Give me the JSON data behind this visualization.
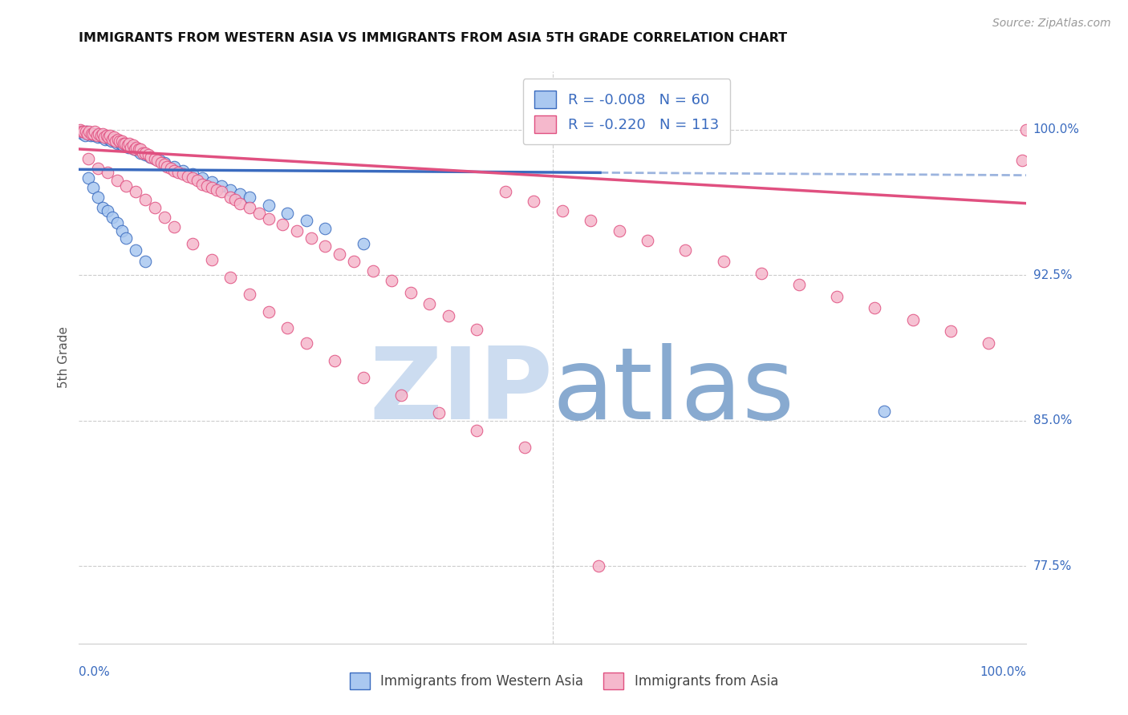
{
  "title": "IMMIGRANTS FROM WESTERN ASIA VS IMMIGRANTS FROM ASIA 5TH GRADE CORRELATION CHART",
  "source": "Source: ZipAtlas.com",
  "ylabel": "5th Grade",
  "y_ticks": [
    0.775,
    0.85,
    0.925,
    1.0
  ],
  "y_tick_labels": [
    "77.5%",
    "85.0%",
    "92.5%",
    "100.0%"
  ],
  "x_range": [
    0.0,
    1.0
  ],
  "y_range": [
    0.735,
    1.03
  ],
  "legend_r_blue": "-0.008",
  "legend_n_blue": "60",
  "legend_r_pink": "-0.220",
  "legend_n_pink": "113",
  "blue_color": "#aac8f0",
  "pink_color": "#f5b8cc",
  "blue_line_color": "#3a6bbf",
  "pink_line_color": "#e05080",
  "watermark_zip_color": "#ccdcf0",
  "watermark_atlas_color": "#88aad0",
  "blue_line_solid_end": 0.55,
  "blue_trend_intercept": 0.9795,
  "blue_trend_slope": -0.003,
  "pink_trend_intercept": 0.99,
  "pink_trend_slope": -0.028,
  "blue_scatter_x": [
    0.002,
    0.004,
    0.006,
    0.008,
    0.01,
    0.012,
    0.014,
    0.016,
    0.018,
    0.02,
    0.022,
    0.024,
    0.026,
    0.028,
    0.03,
    0.032,
    0.034,
    0.036,
    0.038,
    0.04,
    0.042,
    0.044,
    0.046,
    0.05,
    0.052,
    0.055,
    0.058,
    0.062,
    0.065,
    0.07,
    0.075,
    0.08,
    0.085,
    0.09,
    0.1,
    0.11,
    0.12,
    0.13,
    0.14,
    0.15,
    0.16,
    0.17,
    0.18,
    0.2,
    0.22,
    0.24,
    0.26,
    0.3,
    0.01,
    0.015,
    0.02,
    0.025,
    0.03,
    0.035,
    0.04,
    0.045,
    0.05,
    0.06,
    0.07,
    0.85
  ],
  "blue_scatter_y": [
    0.999,
    0.998,
    0.997,
    0.999,
    0.998,
    0.997,
    0.998,
    0.997,
    0.998,
    0.996,
    0.997,
    0.996,
    0.997,
    0.995,
    0.996,
    0.995,
    0.994,
    0.995,
    0.994,
    0.993,
    0.994,
    0.993,
    0.992,
    0.992,
    0.991,
    0.991,
    0.99,
    0.989,
    0.988,
    0.987,
    0.986,
    0.985,
    0.984,
    0.983,
    0.981,
    0.979,
    0.977,
    0.975,
    0.973,
    0.971,
    0.969,
    0.967,
    0.965,
    0.961,
    0.957,
    0.953,
    0.949,
    0.941,
    0.975,
    0.97,
    0.965,
    0.96,
    0.958,
    0.955,
    0.952,
    0.948,
    0.944,
    0.938,
    0.932,
    0.855
  ],
  "pink_scatter_x": [
    0.001,
    0.003,
    0.005,
    0.007,
    0.009,
    0.011,
    0.013,
    0.015,
    0.017,
    0.019,
    0.021,
    0.023,
    0.025,
    0.027,
    0.029,
    0.031,
    0.033,
    0.035,
    0.037,
    0.039,
    0.041,
    0.043,
    0.045,
    0.047,
    0.049,
    0.051,
    0.053,
    0.055,
    0.057,
    0.059,
    0.061,
    0.063,
    0.065,
    0.067,
    0.07,
    0.073,
    0.076,
    0.08,
    0.083,
    0.087,
    0.09,
    0.093,
    0.097,
    0.1,
    0.105,
    0.11,
    0.115,
    0.12,
    0.125,
    0.13,
    0.135,
    0.14,
    0.145,
    0.15,
    0.16,
    0.165,
    0.17,
    0.18,
    0.19,
    0.2,
    0.215,
    0.23,
    0.245,
    0.26,
    0.275,
    0.29,
    0.31,
    0.33,
    0.35,
    0.37,
    0.39,
    0.42,
    0.45,
    0.48,
    0.51,
    0.54,
    0.57,
    0.6,
    0.64,
    0.68,
    0.72,
    0.76,
    0.8,
    0.84,
    0.88,
    0.92,
    0.96,
    0.995,
    1.0,
    0.01,
    0.02,
    0.03,
    0.04,
    0.05,
    0.06,
    0.07,
    0.08,
    0.09,
    0.1,
    0.12,
    0.14,
    0.16,
    0.18,
    0.2,
    0.22,
    0.24,
    0.27,
    0.3,
    0.34,
    0.38,
    0.42,
    0.47,
    0.548
  ],
  "pink_scatter_y": [
    1.0,
    0.999,
    0.999,
    0.999,
    0.998,
    0.999,
    0.998,
    0.998,
    0.999,
    0.997,
    0.998,
    0.997,
    0.998,
    0.996,
    0.997,
    0.996,
    0.997,
    0.995,
    0.996,
    0.994,
    0.995,
    0.994,
    0.994,
    0.993,
    0.993,
    0.992,
    0.993,
    0.991,
    0.992,
    0.99,
    0.991,
    0.99,
    0.99,
    0.988,
    0.988,
    0.987,
    0.986,
    0.985,
    0.984,
    0.983,
    0.982,
    0.981,
    0.98,
    0.979,
    0.978,
    0.977,
    0.976,
    0.975,
    0.974,
    0.972,
    0.971,
    0.97,
    0.969,
    0.968,
    0.965,
    0.964,
    0.962,
    0.96,
    0.957,
    0.954,
    0.951,
    0.948,
    0.944,
    0.94,
    0.936,
    0.932,
    0.927,
    0.922,
    0.916,
    0.91,
    0.904,
    0.897,
    0.968,
    0.963,
    0.958,
    0.953,
    0.948,
    0.943,
    0.938,
    0.932,
    0.926,
    0.92,
    0.914,
    0.908,
    0.902,
    0.896,
    0.89,
    0.984,
    1.0,
    0.985,
    0.98,
    0.978,
    0.974,
    0.971,
    0.968,
    0.964,
    0.96,
    0.955,
    0.95,
    0.941,
    0.933,
    0.924,
    0.915,
    0.906,
    0.898,
    0.89,
    0.881,
    0.872,
    0.863,
    0.854,
    0.845,
    0.836,
    0.775
  ]
}
